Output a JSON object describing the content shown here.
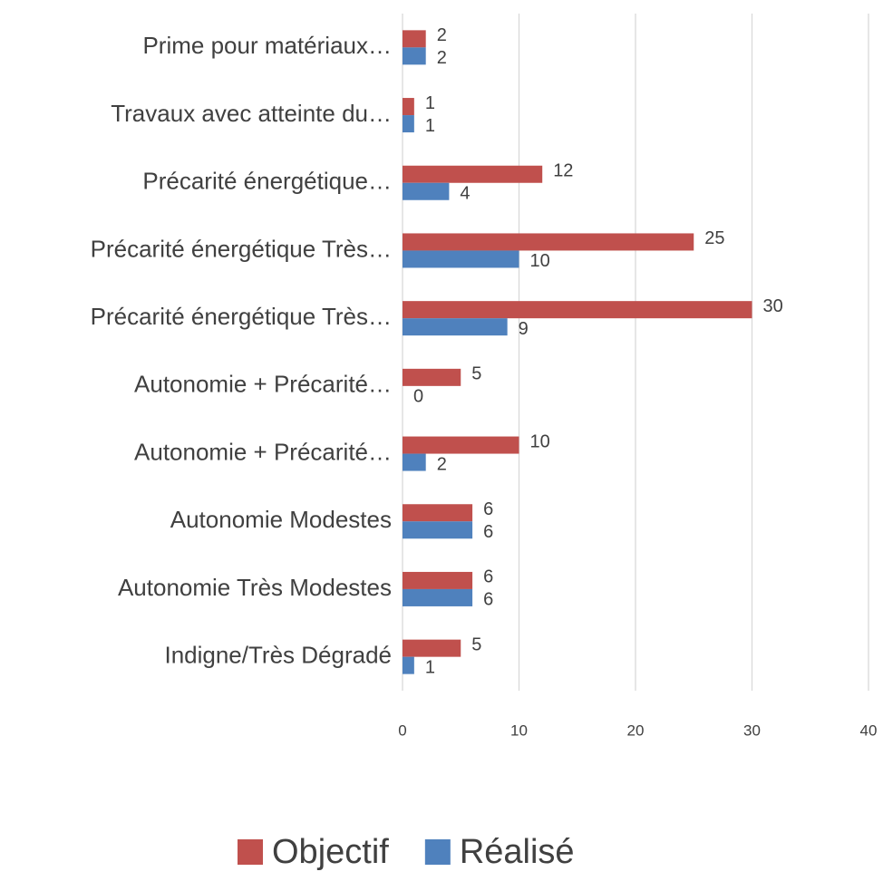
{
  "chart_data": {
    "type": "bar",
    "orientation": "horizontal",
    "categories": [
      "Prime pour matériaux…",
      "Travaux avec atteinte du…",
      "Précarité énergétique…",
      "Précarité énergétique Très…",
      "Précarité énergétique Très…",
      "Autonomie + Précarité…",
      "Autonomie + Précarité…",
      "Autonomie Modestes",
      "Autonomie Très Modestes",
      "Indigne/Très Dégradé"
    ],
    "series": [
      {
        "name": "Objectif",
        "color": "#c0504d",
        "values": [
          2,
          1,
          12,
          25,
          30,
          5,
          10,
          6,
          6,
          5
        ]
      },
      {
        "name": "Réalisé",
        "color": "#4f81bd",
        "values": [
          2,
          1,
          4,
          10,
          9,
          0,
          2,
          6,
          6,
          1
        ]
      }
    ],
    "xlim": [
      0,
      40
    ],
    "xticks": [
      0,
      10,
      20,
      30,
      40
    ],
    "grid": true,
    "legend": "bottom"
  }
}
